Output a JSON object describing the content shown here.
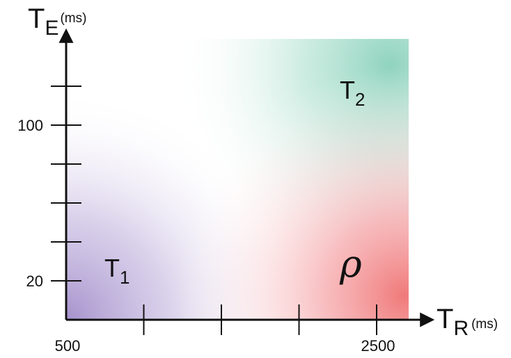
{
  "axes": {
    "x": {
      "symbol": "T",
      "subscript": "R",
      "unit": "(ms)"
    },
    "y": {
      "symbol": "T",
      "subscript": "E",
      "unit": "(ms)"
    }
  },
  "x_ticks": [
    {
      "label": "500"
    },
    {
      "label": ""
    },
    {
      "label": ""
    },
    {
      "label": ""
    },
    {
      "label": "2500"
    }
  ],
  "y_ticks": [
    {
      "label": "20"
    },
    {
      "label": ""
    },
    {
      "label": ""
    },
    {
      "label": ""
    },
    {
      "label": "100"
    },
    {
      "label": ""
    }
  ],
  "regions": {
    "t1": {
      "symbol": "T",
      "subscript": "1",
      "color": "#a692cc"
    },
    "t2": {
      "symbol": "T",
      "subscript": "2",
      "color": "#8fd3be"
    },
    "rho": {
      "symbol": "ρ",
      "color": "#f07a7a"
    }
  },
  "colors": {
    "axis": "#111111",
    "background": "#ffffff"
  }
}
